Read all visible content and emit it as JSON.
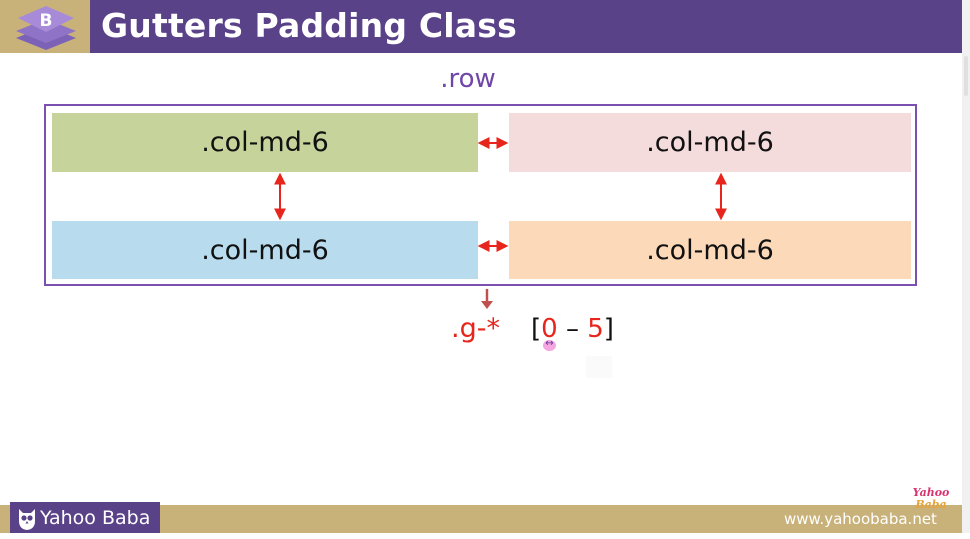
{
  "header": {
    "title": "Gutters Padding Class",
    "logo_letter": "B",
    "logo_icon": "bootstrap-logo"
  },
  "diagram": {
    "row_label": ".row",
    "columns": [
      {
        "label": ".col-md-6",
        "color": "#c6d49c"
      },
      {
        "label": ".col-md-6",
        "color": "#f4dcdc"
      },
      {
        "label": ".col-md-6",
        "color": "#b8dced"
      },
      {
        "label": ".col-md-6",
        "color": "#fbd9b9"
      }
    ],
    "gutter_class": ".g-*",
    "range_open": "[",
    "range_min": "0",
    "range_dash": " – ",
    "range_max": "5",
    "range_close": "]"
  },
  "footer": {
    "brand": "Yahoo Baba",
    "url": "www.yahoobaba.net",
    "watermark_line1": "Yahoo",
    "watermark_line2": "Baba"
  },
  "colors": {
    "header_bg": "#5a4289",
    "header_accent": "#c8b27a",
    "row_border": "#7b50b0",
    "arrow": "#e8251c"
  }
}
